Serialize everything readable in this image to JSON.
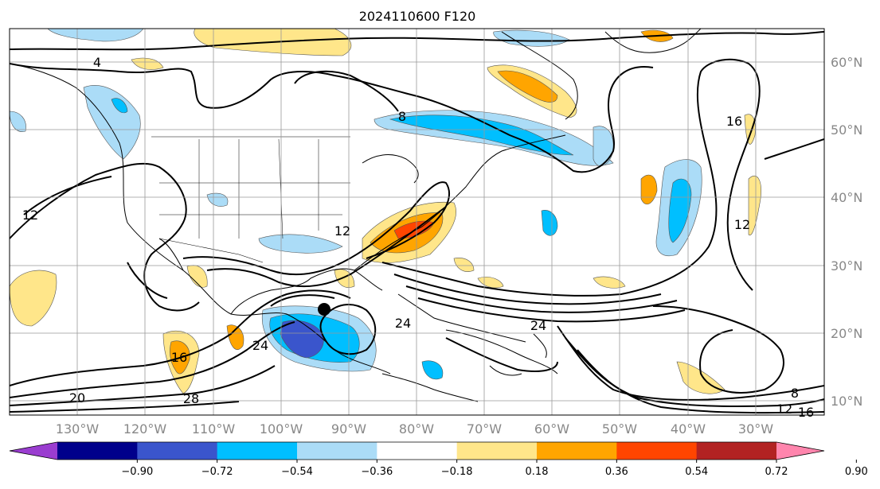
{
  "title": "2024110600 F120",
  "lon_labels": [
    "130°W",
    "120°W",
    "110°W",
    "100°W",
    "90°W",
    "80°W",
    "70°W",
    "60°W",
    "50°W",
    "40°W",
    "30°W"
  ],
  "lat_labels": [
    "60°N",
    "50°N",
    "40°N",
    "30°N",
    "20°N",
    "10°N"
  ],
  "contour_labels": [
    "4",
    "8",
    "12",
    "16",
    "20",
    "24",
    "28"
  ],
  "colorbar": {
    "colors": [
      "#9a3dd0",
      "#00008b",
      "#3a55cc",
      "#00bfff",
      "#abdcf7",
      "#ffffff",
      "#ffe68a",
      "#ffa500",
      "#ff4500",
      "#b22222",
      "#ff85ad"
    ],
    "tick_labels": [
      "−0.90",
      "−0.72",
      "−0.54",
      "−0.36",
      "−0.18",
      "0.18",
      "0.36",
      "0.54",
      "0.72",
      "0.90"
    ]
  },
  "markers": {
    "storm_center": "black-dot"
  }
}
